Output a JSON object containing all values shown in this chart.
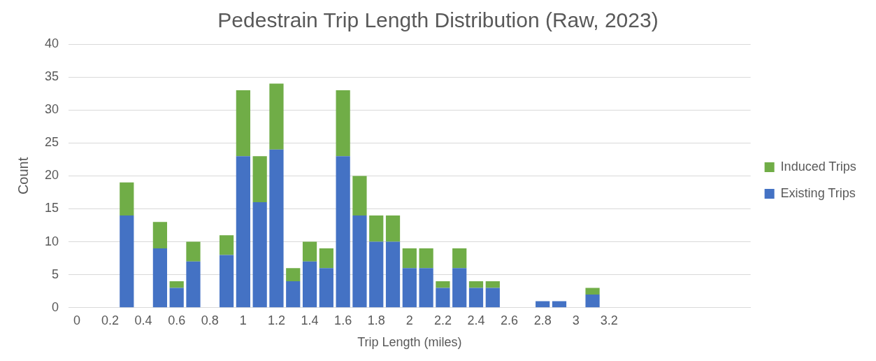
{
  "chart_data": {
    "type": "bar",
    "title": "Pedestrain Trip Length Distribution (Raw, 2023)",
    "xlabel": "Trip Length (miles)",
    "ylabel": "Count",
    "categories": [
      "0",
      null,
      "0.2",
      null,
      "0.4",
      null,
      "0.6",
      null,
      "0.8",
      null,
      "1",
      null,
      "1.2",
      null,
      "1.4",
      null,
      "1.6",
      null,
      "1.8",
      null,
      "2",
      null,
      "2.2",
      null,
      "2.4",
      null,
      "2.6",
      null,
      "2.8",
      null,
      "3",
      null,
      "3.2",
      null,
      null,
      null,
      null,
      null,
      null,
      null,
      null
    ],
    "series": [
      {
        "name": "Existing Trips",
        "color": "#4472c4",
        "values": [
          0,
          0,
          0,
          14,
          0,
          9,
          3,
          7,
          0,
          8,
          23,
          16,
          24,
          4,
          7,
          6,
          23,
          14,
          10,
          10,
          6,
          6,
          3,
          6,
          3,
          3,
          0,
          0,
          1,
          1,
          0,
          2,
          0,
          0,
          0,
          0,
          0,
          0,
          0,
          0,
          0
        ]
      },
      {
        "name": "Induced Trips",
        "color": "#70ad47",
        "values": [
          0,
          0,
          0,
          5,
          0,
          4,
          1,
          3,
          0,
          3,
          10,
          7,
          10,
          2,
          3,
          3,
          10,
          6,
          4,
          4,
          3,
          3,
          1,
          3,
          1,
          1,
          0,
          0,
          0,
          0,
          0,
          1,
          0,
          0,
          0,
          0,
          0,
          0,
          0,
          0,
          0
        ]
      }
    ],
    "stacked": true,
    "ylim": [
      0,
      40
    ],
    "yticks": [
      0,
      5,
      10,
      15,
      20,
      25,
      30,
      35,
      40
    ],
    "grid": "y",
    "legend": "right"
  }
}
